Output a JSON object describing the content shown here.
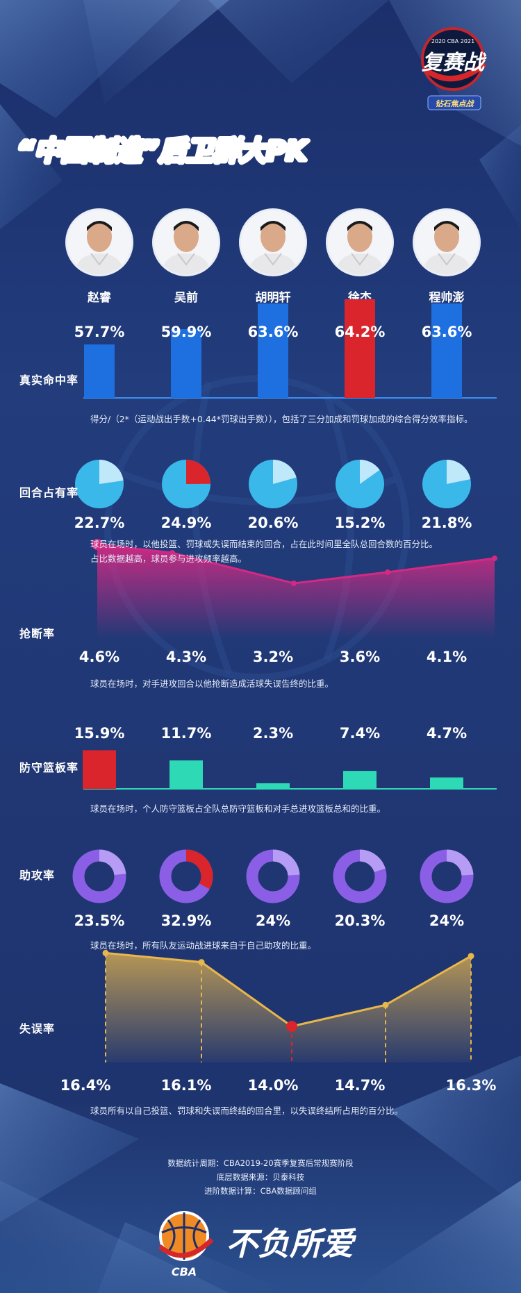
{
  "header": {
    "title": "“中国制造”后卫群大PK",
    "event_logo": {
      "years": "2020 CBA 2021",
      "name": "复赛战",
      "sub": "钻石焦点战"
    }
  },
  "players": [
    {
      "name": "赵睿"
    },
    {
      "name": "吴前"
    },
    {
      "name": "胡明轩"
    },
    {
      "name": "徐杰"
    },
    {
      "name": "程帅澎"
    }
  ],
  "colors": {
    "blue_bar": "#1e6fe0",
    "red": "#d9252b",
    "cyan": "#3bb8ea",
    "teal": "#2ed9b6",
    "purple": "#8b5ee6",
    "pink": "#d22a83",
    "gold": "#e8b64c"
  },
  "chart_data": [
    {
      "type": "bar",
      "title": "真实命中率",
      "categories": [
        "赵睿",
        "吴前",
        "胡明轩",
        "徐杰",
        "程帅澎"
      ],
      "values": [
        57.7,
        59.9,
        63.6,
        64.2,
        63.6
      ],
      "labels": [
        "57.7%",
        "59.9%",
        "63.6%",
        "64.2%",
        "63.6%"
      ],
      "highlight_index": 3,
      "description": "得分/（2*（运动战出手数+0.44*罚球出手数）），包括了三分加成和罚球加成的综合得分效率指标。"
    },
    {
      "type": "pie",
      "title": "回合占有率",
      "categories": [
        "赵睿",
        "吴前",
        "胡明轩",
        "徐杰",
        "程帅澎"
      ],
      "values": [
        22.7,
        24.9,
        20.6,
        15.2,
        21.8
      ],
      "labels": [
        "22.7%",
        "24.9%",
        "20.6%",
        "15.2%",
        "21.8%"
      ],
      "highlight_index": 1,
      "description": [
        "球员在场时，以他投篮、罚球或失误而结束的回合，占在此时间里全队总回合数的百分比。",
        "占比数据越高，球员参与进攻频率越高。"
      ]
    },
    {
      "type": "area",
      "title": "抢断率",
      "categories": [
        "赵睿",
        "吴前",
        "胡明轩",
        "徐杰",
        "程帅澎"
      ],
      "values": [
        4.6,
        4.3,
        3.2,
        3.6,
        4.1
      ],
      "labels": [
        "4.6%",
        "4.3%",
        "3.2%",
        "3.6%",
        "4.1%"
      ],
      "highlight_index": 0,
      "description": "球员在场时，对手进攻回合以他抢断造成活球失误告终的比重。"
    },
    {
      "type": "bar",
      "title": "防守篮板率",
      "categories": [
        "赵睿",
        "吴前",
        "胡明轩",
        "徐杰",
        "程帅澎"
      ],
      "values": [
        15.9,
        11.7,
        2.3,
        7.4,
        4.7
      ],
      "labels": [
        "15.9%",
        "11.7%",
        "2.3%",
        "7.4%",
        "4.7%"
      ],
      "highlight_index": 0,
      "description": "球员在场时，个人防守篮板占全队总防守篮板和对手总进攻篮板总和的比重。"
    },
    {
      "type": "pie",
      "title": "助攻率",
      "categories": [
        "赵睿",
        "吴前",
        "胡明轩",
        "徐杰",
        "程帅澎"
      ],
      "values": [
        23.5,
        32.9,
        24,
        20.3,
        24
      ],
      "labels": [
        "23.5%",
        "32.9%",
        "24%",
        "20.3%",
        "24%"
      ],
      "highlight_index": 1,
      "description": "球员在场时，所有队友运动战进球来自于自己助攻的比重。"
    },
    {
      "type": "area",
      "title": "失误率",
      "categories": [
        "赵睿",
        "吴前",
        "胡明轩",
        "徐杰",
        "程帅澎"
      ],
      "values": [
        16.4,
        16.1,
        14.0,
        14.7,
        16.3
      ],
      "labels": [
        "16.4%",
        "16.1%",
        "14.0%",
        "14.7%",
        "16.3%"
      ],
      "highlight_index": 2,
      "description": "球员所有以自己投篮、罚球和失误而终结的回合里，以失误终结所占用的百分比。"
    }
  ],
  "footer": {
    "lines": [
      "数据统计周期：CBA2019-20赛季复赛后常规赛阶段",
      "底层数据来源：贝泰科技",
      "进阶数据计算：CBA数据顾问组"
    ],
    "cba_logo": "CBA",
    "slogan": "不负所爱"
  }
}
